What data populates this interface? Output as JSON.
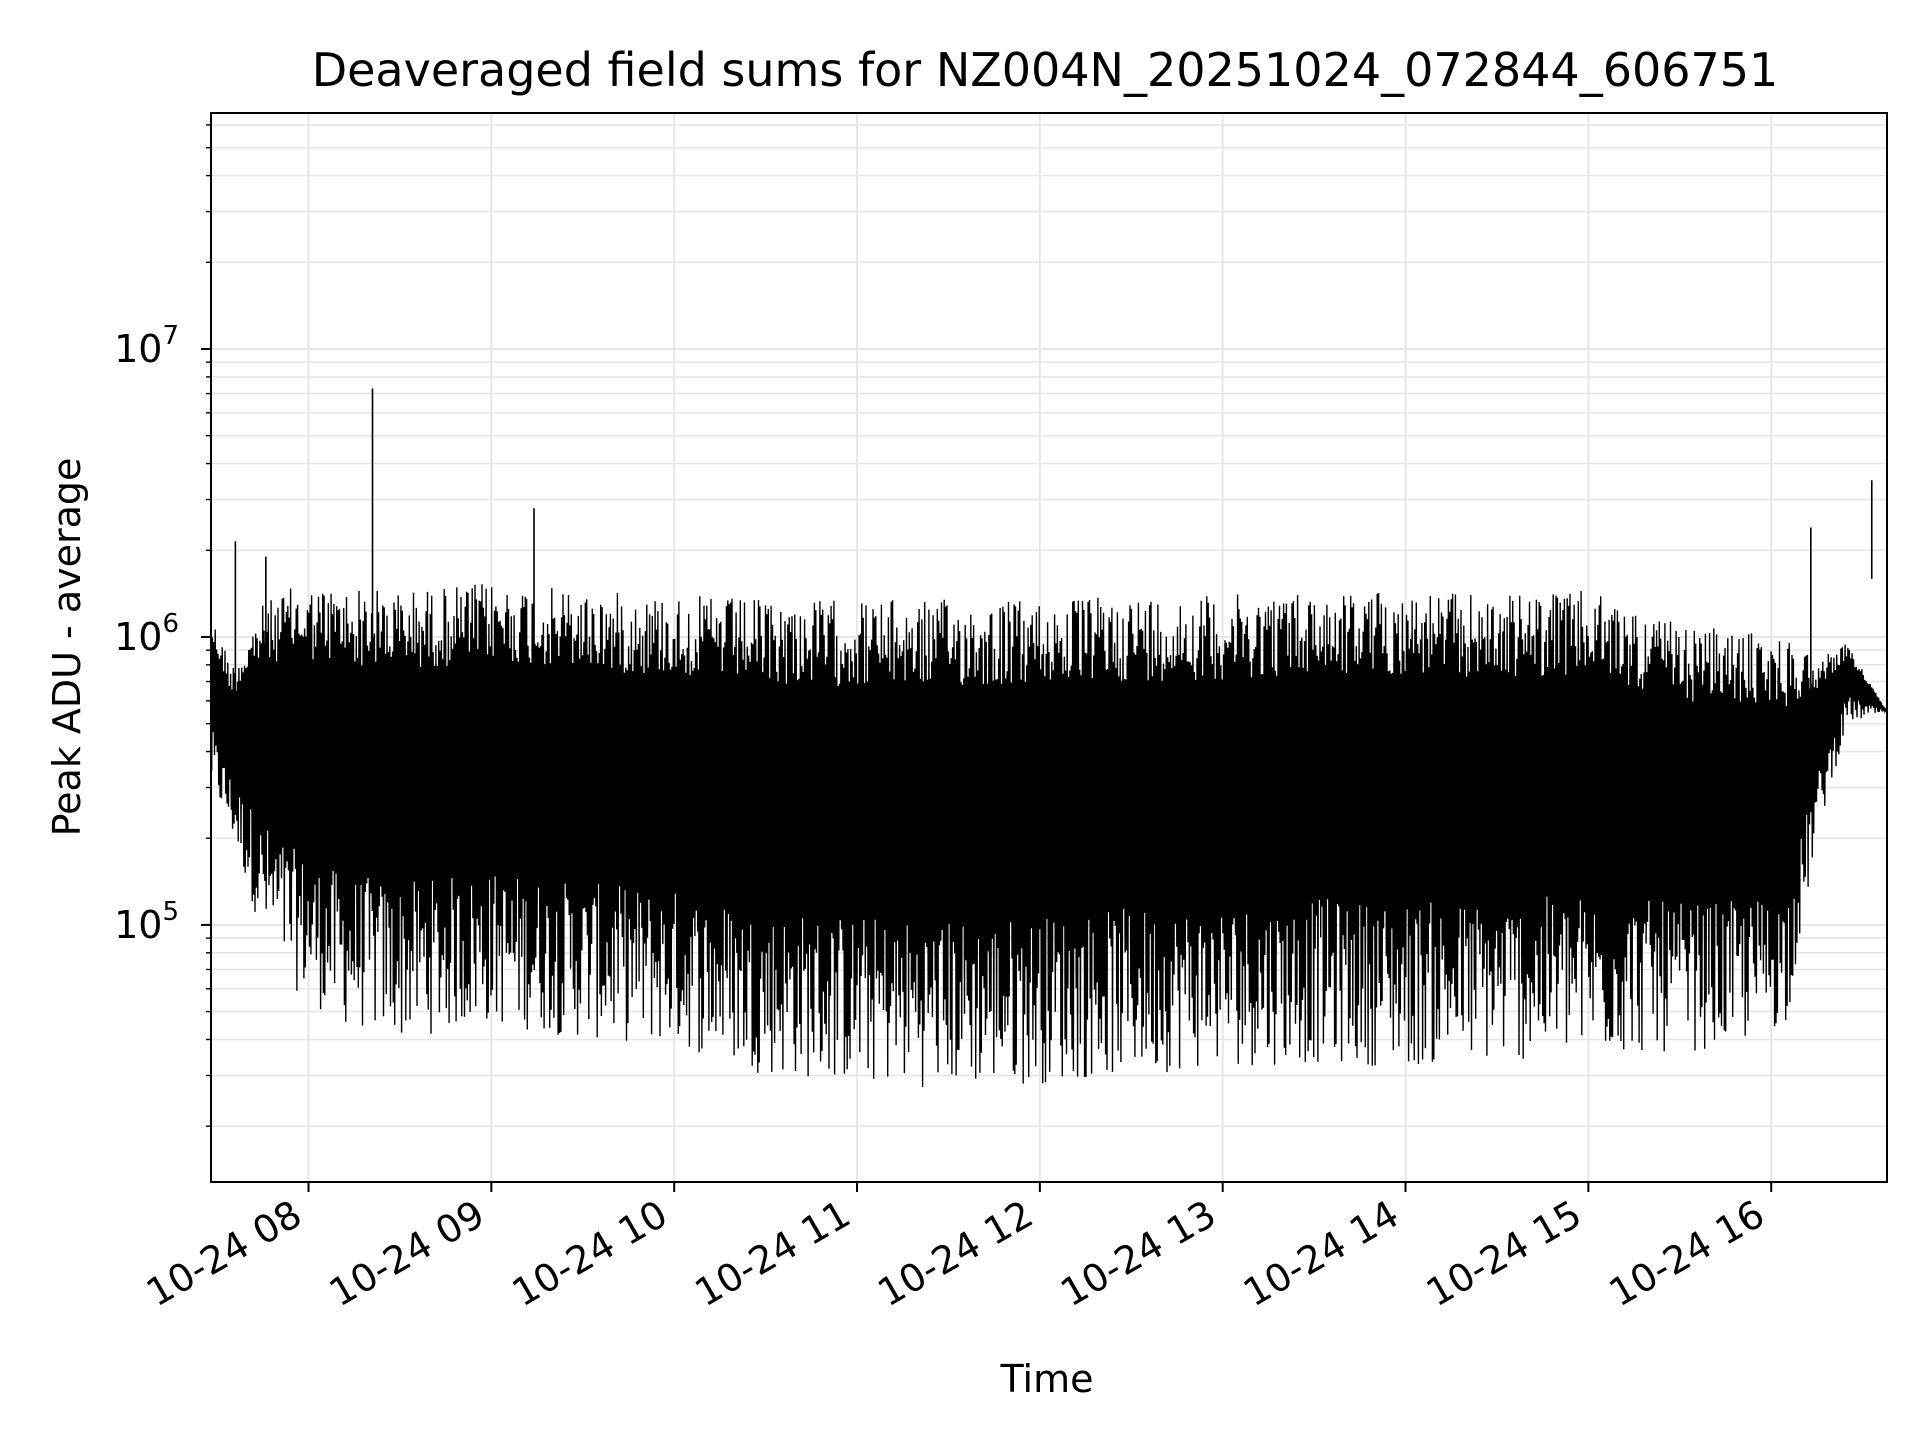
{
  "chart_data": {
    "type": "line",
    "title": "Deaveraged field sums for NZ004N_20251024_072844_606751",
    "xlabel": "Time",
    "ylabel": "Peak ADU - average",
    "yscale": "log",
    "grid": true,
    "line_color": "#000000",
    "x_range": [
      "10-24 07:28",
      "10-24 16:38"
    ],
    "ylim": [
      12800,
      66000000
    ],
    "x_ticks": [
      {
        "label": "10-24 08",
        "hour": 8
      },
      {
        "label": "10-24 09",
        "hour": 9
      },
      {
        "label": "10-24 10",
        "hour": 10
      },
      {
        "label": "10-24 11",
        "hour": 11
      },
      {
        "label": "10-24 12",
        "hour": 12
      },
      {
        "label": "10-24 13",
        "hour": 13
      },
      {
        "label": "10-24 14",
        "hour": 14
      },
      {
        "label": "10-24 15",
        "hour": 15
      },
      {
        "label": "10-24 16",
        "hour": 16
      }
    ],
    "y_ticks": [
      {
        "base": "10",
        "exp": "5",
        "value": 100000
      },
      {
        "base": "10",
        "exp": "6",
        "value": 1000000
      },
      {
        "base": "10",
        "exp": "7",
        "value": 10000000
      }
    ],
    "envelope": {
      "x": [
        "07:28",
        "07:35",
        "07:45",
        "07:55",
        "08:10",
        "08:30",
        "09:00",
        "09:30",
        "10:00",
        "10:30",
        "11:00",
        "11:30",
        "12:00",
        "12:30",
        "13:00",
        "13:30",
        "14:00",
        "14:30",
        "15:00",
        "15:30",
        "15:50",
        "16:05",
        "16:15",
        "16:25",
        "16:38"
      ],
      "upper": [
        1200000,
        800000,
        1300000,
        1500000,
        1500000,
        1450000,
        1550000,
        1450000,
        1400000,
        1350000,
        1350000,
        1350000,
        1350000,
        1400000,
        1400000,
        1450000,
        1450000,
        1400000,
        1450000,
        1100000,
        1050000,
        1000000,
        850000,
        950000,
        550000
      ],
      "lower": [
        300000,
        200000,
        90000,
        60000,
        45000,
        40000,
        45000,
        40000,
        38000,
        30000,
        28000,
        27000,
        28000,
        30000,
        32000,
        33000,
        32000,
        33000,
        35000,
        36000,
        38000,
        45000,
        200000,
        500000,
        550000
      ]
    },
    "spikes": [
      {
        "x": "07:36",
        "y": 2150000
      },
      {
        "x": "07:46",
        "y": 1900000
      },
      {
        "x": "08:21",
        "y": 7300000
      },
      {
        "x": "09:14",
        "y": 2800000
      },
      {
        "x": "16:13",
        "y": 2400000
      },
      {
        "x": "16:33",
        "y": 3500000
      }
    ]
  }
}
